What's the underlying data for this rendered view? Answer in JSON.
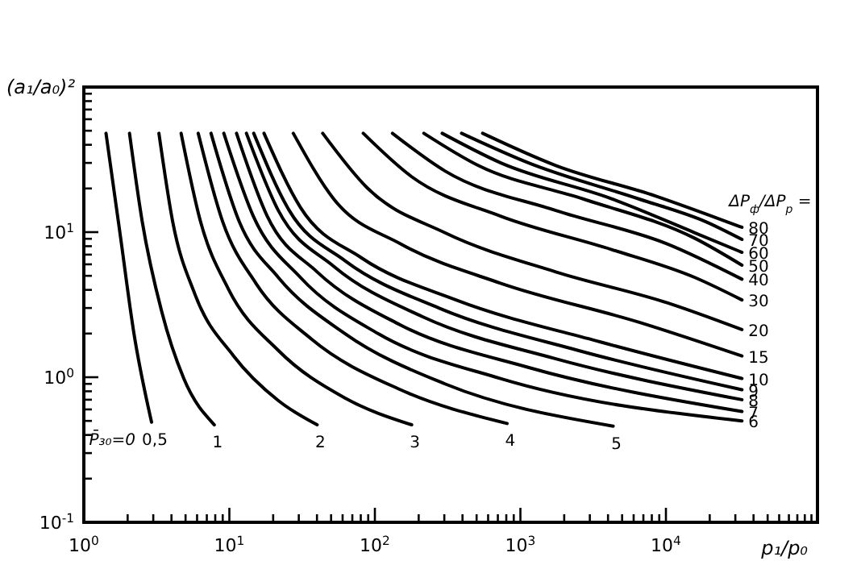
{
  "chart_data": {
    "type": "line",
    "xlabel": "p₁/p₀",
    "ylabel": "(a₁/a₀)²",
    "log": "xy",
    "grid": false,
    "marker": "none",
    "line_style": "solid",
    "xlim": [
      1,
      110000
    ],
    "ylim": [
      0.1,
      100
    ],
    "xticks": [
      {
        "value": 1,
        "label": "10$^{0}$"
      },
      {
        "value": 2,
        "label": null
      },
      {
        "value": 3,
        "label": null
      },
      {
        "value": 4,
        "label": null
      },
      {
        "value": 5,
        "label": null
      },
      {
        "value": 6,
        "label": null
      },
      {
        "value": 7,
        "label": null
      },
      {
        "value": 8,
        "label": null
      },
      {
        "value": 9,
        "label": null
      },
      {
        "value": 10,
        "label": "10$^{1}$"
      },
      {
        "value": 20,
        "label": null
      },
      {
        "value": 30,
        "label": null
      },
      {
        "value": 40,
        "label": null
      },
      {
        "value": 50,
        "label": null
      },
      {
        "value": 60,
        "label": null
      },
      {
        "value": 70,
        "label": null
      },
      {
        "value": 80,
        "label": null
      },
      {
        "value": 90,
        "label": null
      },
      {
        "value": 100,
        "label": "10$^{2}$"
      },
      {
        "value": 200,
        "label": null
      },
      {
        "value": 300,
        "label": null
      },
      {
        "value": 400,
        "label": null
      },
      {
        "value": 500,
        "label": null
      },
      {
        "value": 600,
        "label": null
      },
      {
        "value": 700,
        "label": null
      },
      {
        "value": 800,
        "label": null
      },
      {
        "value": 900,
        "label": null
      },
      {
        "value": 1000,
        "label": "10$^{3}$"
      },
      {
        "value": 2000,
        "label": null
      },
      {
        "value": 3000,
        "label": null
      },
      {
        "value": 4000,
        "label": null
      },
      {
        "value": 5000,
        "label": null
      },
      {
        "value": 6000,
        "label": null
      },
      {
        "value": 7000,
        "label": null
      },
      {
        "value": 8000,
        "label": null
      },
      {
        "value": 9000,
        "label": null
      },
      {
        "value": 10000,
        "label": "10$^{4}$"
      },
      {
        "value": 20000,
        "label": null
      },
      {
        "value": 30000,
        "label": null
      },
      {
        "value": 40000,
        "label": null
      },
      {
        "value": 50000,
        "label": null
      },
      {
        "value": 60000,
        "label": null
      },
      {
        "value": 70000,
        "label": null
      },
      {
        "value": 80000,
        "label": null
      },
      {
        "value": 90000,
        "label": null
      },
      {
        "value": 100000,
        "label": null
      }
    ],
    "yticks": [
      {
        "value": 0.1,
        "label": "10$^{-1}$"
      },
      {
        "value": 0.2,
        "label": null
      },
      {
        "value": 0.3,
        "label": null
      },
      {
        "value": 0.4,
        "label": null
      },
      {
        "value": 0.5,
        "label": null
      },
      {
        "value": 0.6,
        "label": null
      },
      {
        "value": 0.7,
        "label": null
      },
      {
        "value": 0.8,
        "label": null
      },
      {
        "value": 0.9,
        "label": null
      },
      {
        "value": 1,
        "label": "10$^{0}$"
      },
      {
        "value": 2,
        "label": null
      },
      {
        "value": 3,
        "label": null
      },
      {
        "value": 4,
        "label": null
      },
      {
        "value": 5,
        "label": null
      },
      {
        "value": 6,
        "label": null
      },
      {
        "value": 7,
        "label": null
      },
      {
        "value": 8,
        "label": null
      },
      {
        "value": 9,
        "label": null
      },
      {
        "value": 10,
        "label": "10$^{1}$"
      },
      {
        "value": 20,
        "label": null
      },
      {
        "value": 30,
        "label": null
      },
      {
        "value": 40,
        "label": null
      },
      {
        "value": 50,
        "label": null
      },
      {
        "value": 60,
        "label": null
      },
      {
        "value": 70,
        "label": null
      },
      {
        "value": 80,
        "label": null
      },
      {
        "value": 90,
        "label": null
      }
    ],
    "annotations": [
      "P̄₃₀=0",
      "ΔP$_{ф}$/ΔP$_{р}$ ="
    ],
    "series": [
      {
        "name": "0,5",
        "color": "#000000",
        "x": [
          1.42,
          1.77,
          2.21,
          2.92
        ],
        "values": [
          48,
          9.9,
          2.0,
          0.49
        ]
      },
      {
        "name": "1",
        "color": "#000000",
        "x": [
          2.06,
          2.52,
          3.42,
          4.86,
          7.88
        ],
        "values": [
          48,
          11.8,
          2.86,
          0.98,
          0.47
        ]
      },
      {
        "name": "2",
        "color": "#000000",
        "x": [
          3.28,
          4.08,
          5.8,
          10.7,
          21.7,
          40.1
        ],
        "values": [
          48,
          11.8,
          3.73,
          1.4,
          0.69,
          0.47
        ]
      },
      {
        "name": "3",
        "color": "#000000",
        "x": [
          4.66,
          6.34,
          9.83,
          21.7,
          62.2,
          179
        ],
        "values": [
          48,
          11.8,
          4.07,
          1.53,
          0.72,
          0.47
        ]
      },
      {
        "name": "4",
        "color": "#000000",
        "x": [
          6.11,
          9.0,
          15.2,
          36.7,
          150,
          810
        ],
        "values": [
          48,
          11.8,
          4.45,
          1.83,
          0.82,
          0.48
        ]
      },
      {
        "name": "5",
        "color": "#000000",
        "x": [
          7.48,
          11.7,
          21.7,
          62.2,
          303,
          4340
        ],
        "values": [
          48,
          11.8,
          4.87,
          2.0,
          0.9,
          0.46
        ]
      },
      {
        "name": "6",
        "color": "#000000",
        "x": [
          9.16,
          14.6,
          30.8,
          105,
          729,
          33300
        ],
        "values": [
          48,
          12.9,
          4.87,
          2.0,
          0.98,
          0.5
        ]
      },
      {
        "name": "7",
        "color": "#000000",
        "x": [
          11.2,
          18.2,
          40.1,
          150,
          1130,
          33300
        ],
        "values": [
          48,
          12.9,
          5.32,
          2.29,
          1.17,
          0.58
        ]
      },
      {
        "name": "8",
        "color": "#000000",
        "x": [
          13.1,
          21.7,
          52.2,
          213,
          1750,
          33300
        ],
        "values": [
          48,
          14.1,
          5.81,
          2.61,
          1.34,
          0.7
        ]
      },
      {
        "name": "9",
        "color": "#000000",
        "x": [
          14.7,
          25.8,
          62.2,
          277,
          2490,
          33300
        ],
        "values": [
          48,
          14.1,
          6.36,
          2.99,
          1.53,
          0.82
        ]
      },
      {
        "name": "10",
        "color": "#000000",
        "x": [
          17.3,
          30.8,
          81,
          361,
          3550,
          33300
        ],
        "values": [
          48,
          14.8,
          6.64,
          3.41,
          1.75,
          0.98
        ]
      },
      {
        "name": "15",
        "color": "#000000",
        "x": [
          27.5,
          52.2,
          150,
          729,
          6560,
          33300
        ],
        "values": [
          48,
          16.9,
          8.3,
          4.45,
          2.39,
          1.4
        ]
      },
      {
        "name": "20",
        "color": "#000000",
        "x": [
          43.8,
          88.5,
          303,
          1750,
          10200,
          33300
        ],
        "values": [
          48,
          20.2,
          9.9,
          5.32,
          3.26,
          2.13
        ]
      },
      {
        "name": "30",
        "color": "#000000",
        "x": [
          83.2,
          179,
          729,
          4230,
          15800,
          33300
        ],
        "values": [
          48,
          24.1,
          12.9,
          7.59,
          4.87,
          3.41
        ]
      },
      {
        "name": "40",
        "color": "#000000",
        "x": [
          132,
          303,
          1750,
          10200,
          33300
        ],
        "values": [
          48,
          26.4,
          14.1,
          8.3,
          4.74
        ]
      },
      {
        "name": "50",
        "color": "#000000",
        "x": [
          217,
          513,
          2720,
          15800,
          33300
        ],
        "values": [
          48,
          28.8,
          16.9,
          9.07,
          5.92
        ]
      },
      {
        "name": "60",
        "color": "#000000",
        "x": [
          290,
          729,
          4230,
          15800,
          33300
        ],
        "values": [
          48,
          30.1,
          17.0,
          9.9,
          7.26
        ]
      },
      {
        "name": "70",
        "color": "#000000",
        "x": [
          394,
          1130,
          6560,
          18800,
          33300
        ],
        "values": [
          48,
          30.1,
          16.9,
          11.8,
          8.91
        ]
      },
      {
        "name": "80",
        "color": "#000000",
        "x": [
          550,
          1750,
          8540,
          20600,
          33300
        ],
        "values": [
          48,
          28.8,
          17.7,
          12.9,
          10.8
        ]
      }
    ]
  }
}
